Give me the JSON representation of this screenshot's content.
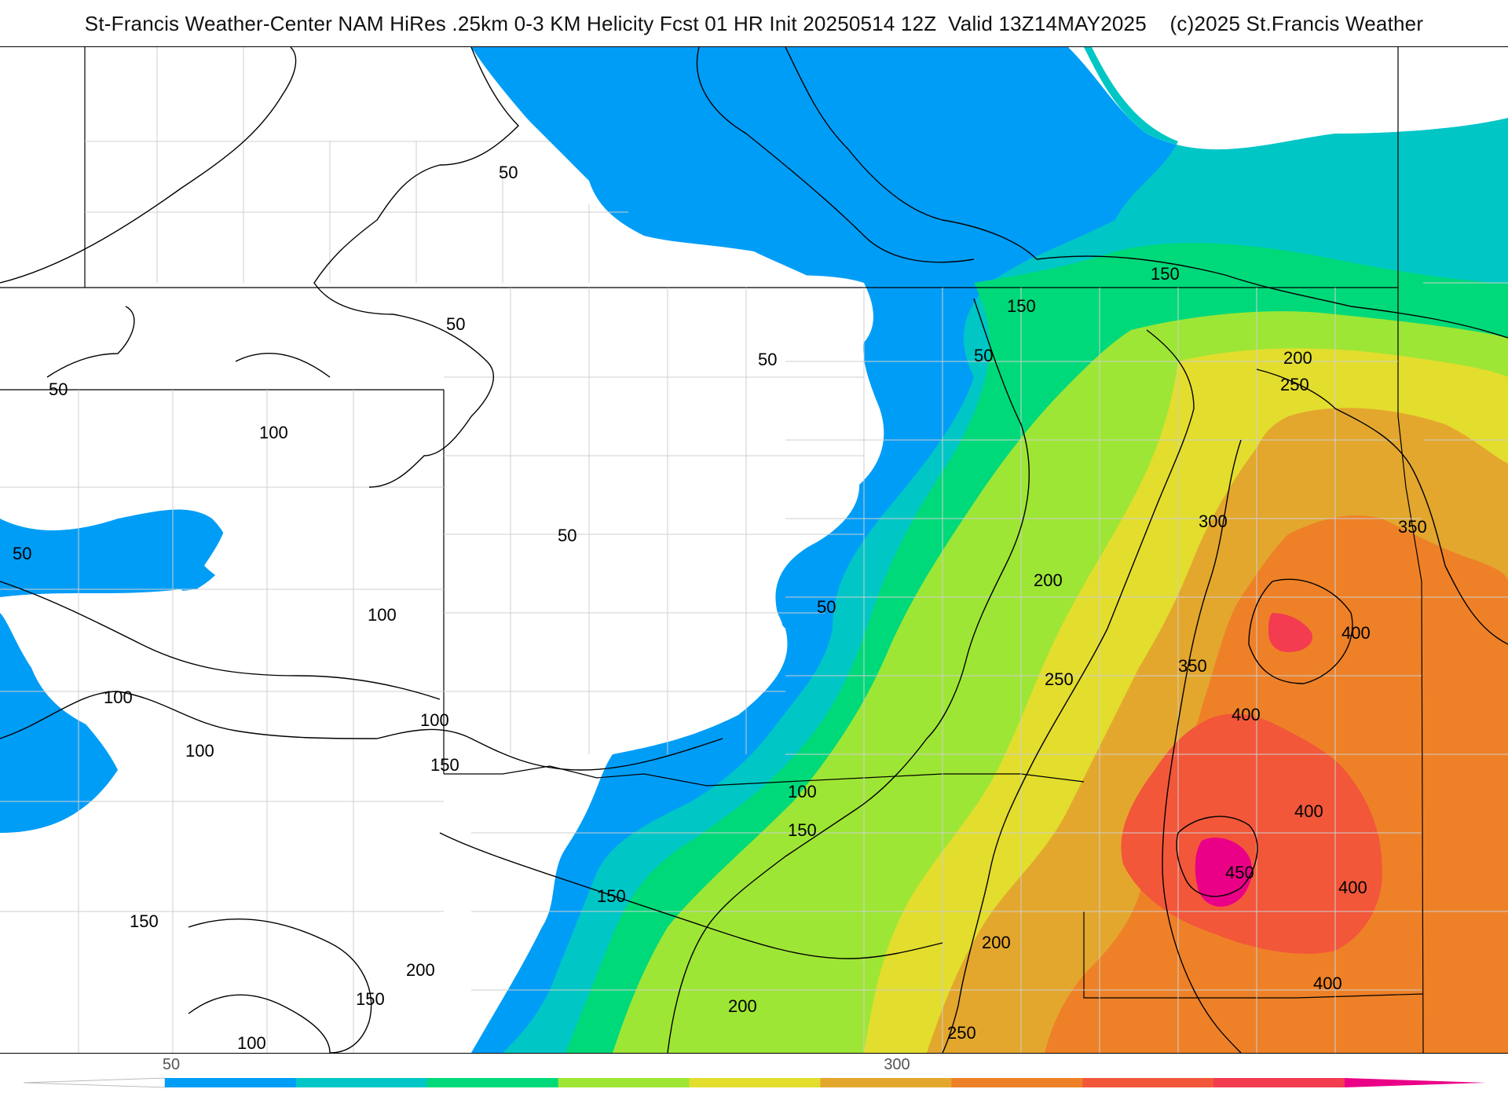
{
  "header": {
    "title": "St-Francis Weather-Center NAM HiRes .25km 0-3 KM Helicity Fcst 01 HR Init 20250514 12Z  Valid 13Z14MAY2025    (c)2025 St.Francis Weather"
  },
  "map": {
    "contour_interval": 50,
    "contour_labels": [
      "50",
      "50",
      "50",
      "50",
      "50",
      "50",
      "50",
      "50",
      "100",
      "100",
      "100",
      "100",
      "100",
      "100",
      "100",
      "150",
      "150",
      "150",
      "150",
      "150",
      "150",
      "150",
      "200",
      "200",
      "200",
      "200",
      "200",
      "250",
      "250",
      "250",
      "300",
      "350",
      "350",
      "400",
      "400",
      "400",
      "400",
      "400",
      "450"
    ]
  },
  "colorbar": {
    "tick_labels": [
      "50",
      "300"
    ],
    "colors": [
      "#ffffff",
      "#009df7",
      "#00c6c6",
      "#00d97a",
      "#9ee635",
      "#e3dd2e",
      "#e3a72e",
      "#ee8127",
      "#f2573a",
      "#f33c50",
      "#ea0087"
    ]
  }
}
